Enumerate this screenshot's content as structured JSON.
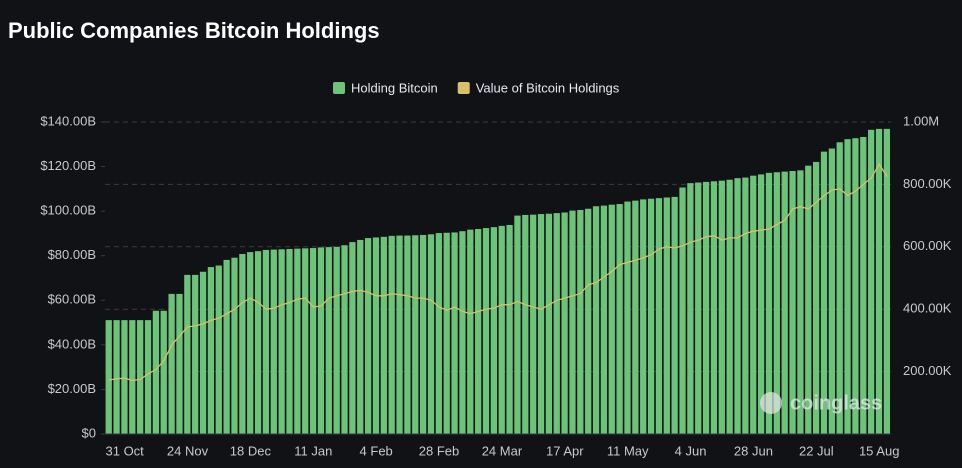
{
  "chart_data": {
    "type": "bar",
    "title": "Public Companies Bitcoin Holdings",
    "watermark": "coinglass",
    "categories": [
      null,
      null,
      "31 Oct",
      null,
      null,
      null,
      null,
      null,
      null,
      null,
      "24 Nov",
      null,
      null,
      null,
      null,
      null,
      null,
      null,
      "18 Dec",
      null,
      null,
      null,
      null,
      null,
      null,
      null,
      "11 Jan",
      null,
      null,
      null,
      null,
      null,
      null,
      null,
      "4 Feb",
      null,
      null,
      null,
      null,
      null,
      null,
      null,
      "28 Feb",
      null,
      null,
      null,
      null,
      null,
      null,
      null,
      "24 Mar",
      null,
      null,
      null,
      null,
      null,
      null,
      null,
      "17 Apr",
      null,
      null,
      null,
      null,
      null,
      null,
      null,
      "11 May",
      null,
      null,
      null,
      null,
      null,
      null,
      null,
      "4 Jun",
      null,
      null,
      null,
      null,
      null,
      null,
      null,
      "28 Jun",
      null,
      null,
      null,
      null,
      null,
      null,
      null,
      "22 Jul",
      null,
      null,
      null,
      null,
      null,
      null,
      null,
      "15 Aug",
      null
    ],
    "series": [
      {
        "name": "Holding Bitcoin",
        "type": "bar",
        "axis": "y2",
        "color": "#6cc47a",
        "values": [
          365000,
          365000,
          365000,
          365000,
          365000,
          365000,
          395000,
          395000,
          449000,
          449000,
          510000,
          510000,
          520000,
          535000,
          540000,
          558000,
          565000,
          577000,
          583000,
          586000,
          590000,
          591000,
          592000,
          593000,
          594000,
          595000,
          596000,
          598000,
          599000,
          600000,
          605000,
          615000,
          622000,
          628000,
          630000,
          632000,
          635000,
          636000,
          636000,
          637000,
          638000,
          640000,
          644000,
          645000,
          646000,
          650000,
          655000,
          657000,
          660000,
          663000,
          667000,
          670000,
          700000,
          702000,
          703000,
          705000,
          706000,
          708000,
          710000,
          716000,
          718000,
          722000,
          730000,
          732000,
          735000,
          737000,
          745000,
          748000,
          752000,
          754000,
          756000,
          758000,
          760000,
          790000,
          804000,
          806000,
          808000,
          810000,
          812000,
          815000,
          820000,
          822000,
          828000,
          832000,
          837000,
          839000,
          841000,
          843000,
          845000,
          860000,
          872000,
          905000,
          915000,
          935000,
          945000,
          948000,
          952000,
          975000,
          978000,
          978000
        ]
      },
      {
        "name": "Value of Bitcoin Holdings",
        "type": "line",
        "axis": "y",
        "color": "#d8c06a",
        "values": [
          24200000000,
          24800000000,
          25000000000,
          24000000000,
          24500000000,
          27000000000,
          29000000000,
          33000000000,
          40000000000,
          44000000000,
          48000000000,
          48500000000,
          49500000000,
          51000000000,
          52000000000,
          54000000000,
          56000000000,
          59000000000,
          61000000000,
          59000000000,
          56000000000,
          56500000000,
          58000000000,
          59000000000,
          60500000000,
          61000000000,
          57000000000,
          57500000000,
          61000000000,
          62000000000,
          63000000000,
          64000000000,
          64500000000,
          63500000000,
          62000000000,
          62000000000,
          63000000000,
          62500000000,
          62000000000,
          61000000000,
          61000000000,
          60000000000,
          57000000000,
          55500000000,
          57000000000,
          55000000000,
          54000000000,
          55000000000,
          56000000000,
          56500000000,
          58000000000,
          58000000000,
          59500000000,
          58000000000,
          57000000000,
          56000000000,
          58000000000,
          60000000000,
          61000000000,
          62000000000,
          63000000000,
          67000000000,
          68000000000,
          70500000000,
          73000000000,
          76000000000,
          77000000000,
          78000000000,
          79000000000,
          80500000000,
          83000000000,
          84000000000,
          83500000000,
          84500000000,
          86000000000,
          87000000000,
          88500000000,
          89000000000,
          87000000000,
          88000000000,
          88000000000,
          90000000000,
          91000000000,
          91500000000,
          92000000000,
          94000000000,
          96000000000,
          101000000000,
          102000000000,
          101000000000,
          104000000000,
          107000000000,
          109500000000,
          110000000000,
          107000000000,
          109000000000,
          112000000000,
          115000000000,
          121000000000,
          115500000000
        ]
      }
    ],
    "ylim": [
      0,
      140000000000
    ],
    "yticks": [
      {
        "value": 0,
        "label": "$0"
      },
      {
        "value": 20000000000,
        "label": "$20.00B"
      },
      {
        "value": 40000000000,
        "label": "$40.00B"
      },
      {
        "value": 60000000000,
        "label": "$60.00B"
      },
      {
        "value": 80000000000,
        "label": "$80.00B"
      },
      {
        "value": 100000000000,
        "label": "$100.00B"
      },
      {
        "value": 120000000000,
        "label": "$120.00B"
      },
      {
        "value": 140000000000,
        "label": "$140.00B"
      }
    ],
    "y2lim": [
      0,
      1000000
    ],
    "y2ticks": [
      {
        "value": 200000,
        "label": "200.00K"
      },
      {
        "value": 400000,
        "label": "400.00K"
      },
      {
        "value": 600000,
        "label": "600.00K"
      },
      {
        "value": 800000,
        "label": "800.00K"
      },
      {
        "value": 1000000,
        "label": "1.00M"
      }
    ],
    "grid": true,
    "legend": "top"
  }
}
